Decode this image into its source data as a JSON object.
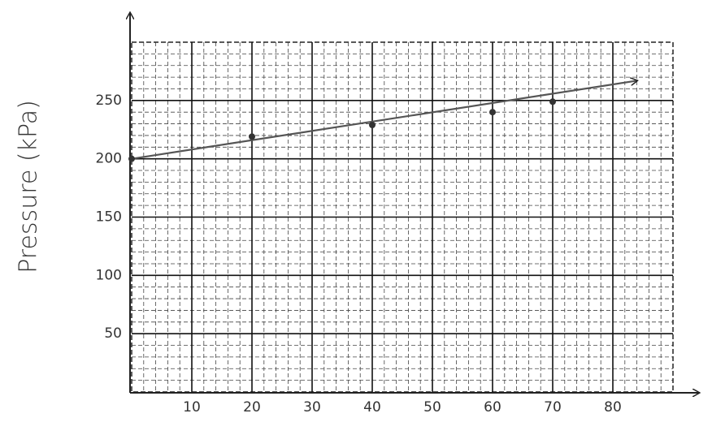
{
  "chart_data": {
    "type": "scatter",
    "y_label": "Pressure (kPa)",
    "xlim": [
      0,
      90
    ],
    "ylim": [
      0,
      300
    ],
    "xticks": [
      10,
      20,
      30,
      40,
      50,
      60,
      70,
      80
    ],
    "yticks": [
      50,
      100,
      150,
      200,
      250
    ],
    "grid": true,
    "points": {
      "x": [
        0,
        20,
        40,
        60,
        70
      ],
      "values": [
        200,
        219,
        229,
        240,
        249
      ],
      "color": "#333333"
    },
    "trend_line": {
      "x": [
        0,
        84
      ],
      "values": [
        200,
        267
      ],
      "color": "#555555"
    }
  }
}
